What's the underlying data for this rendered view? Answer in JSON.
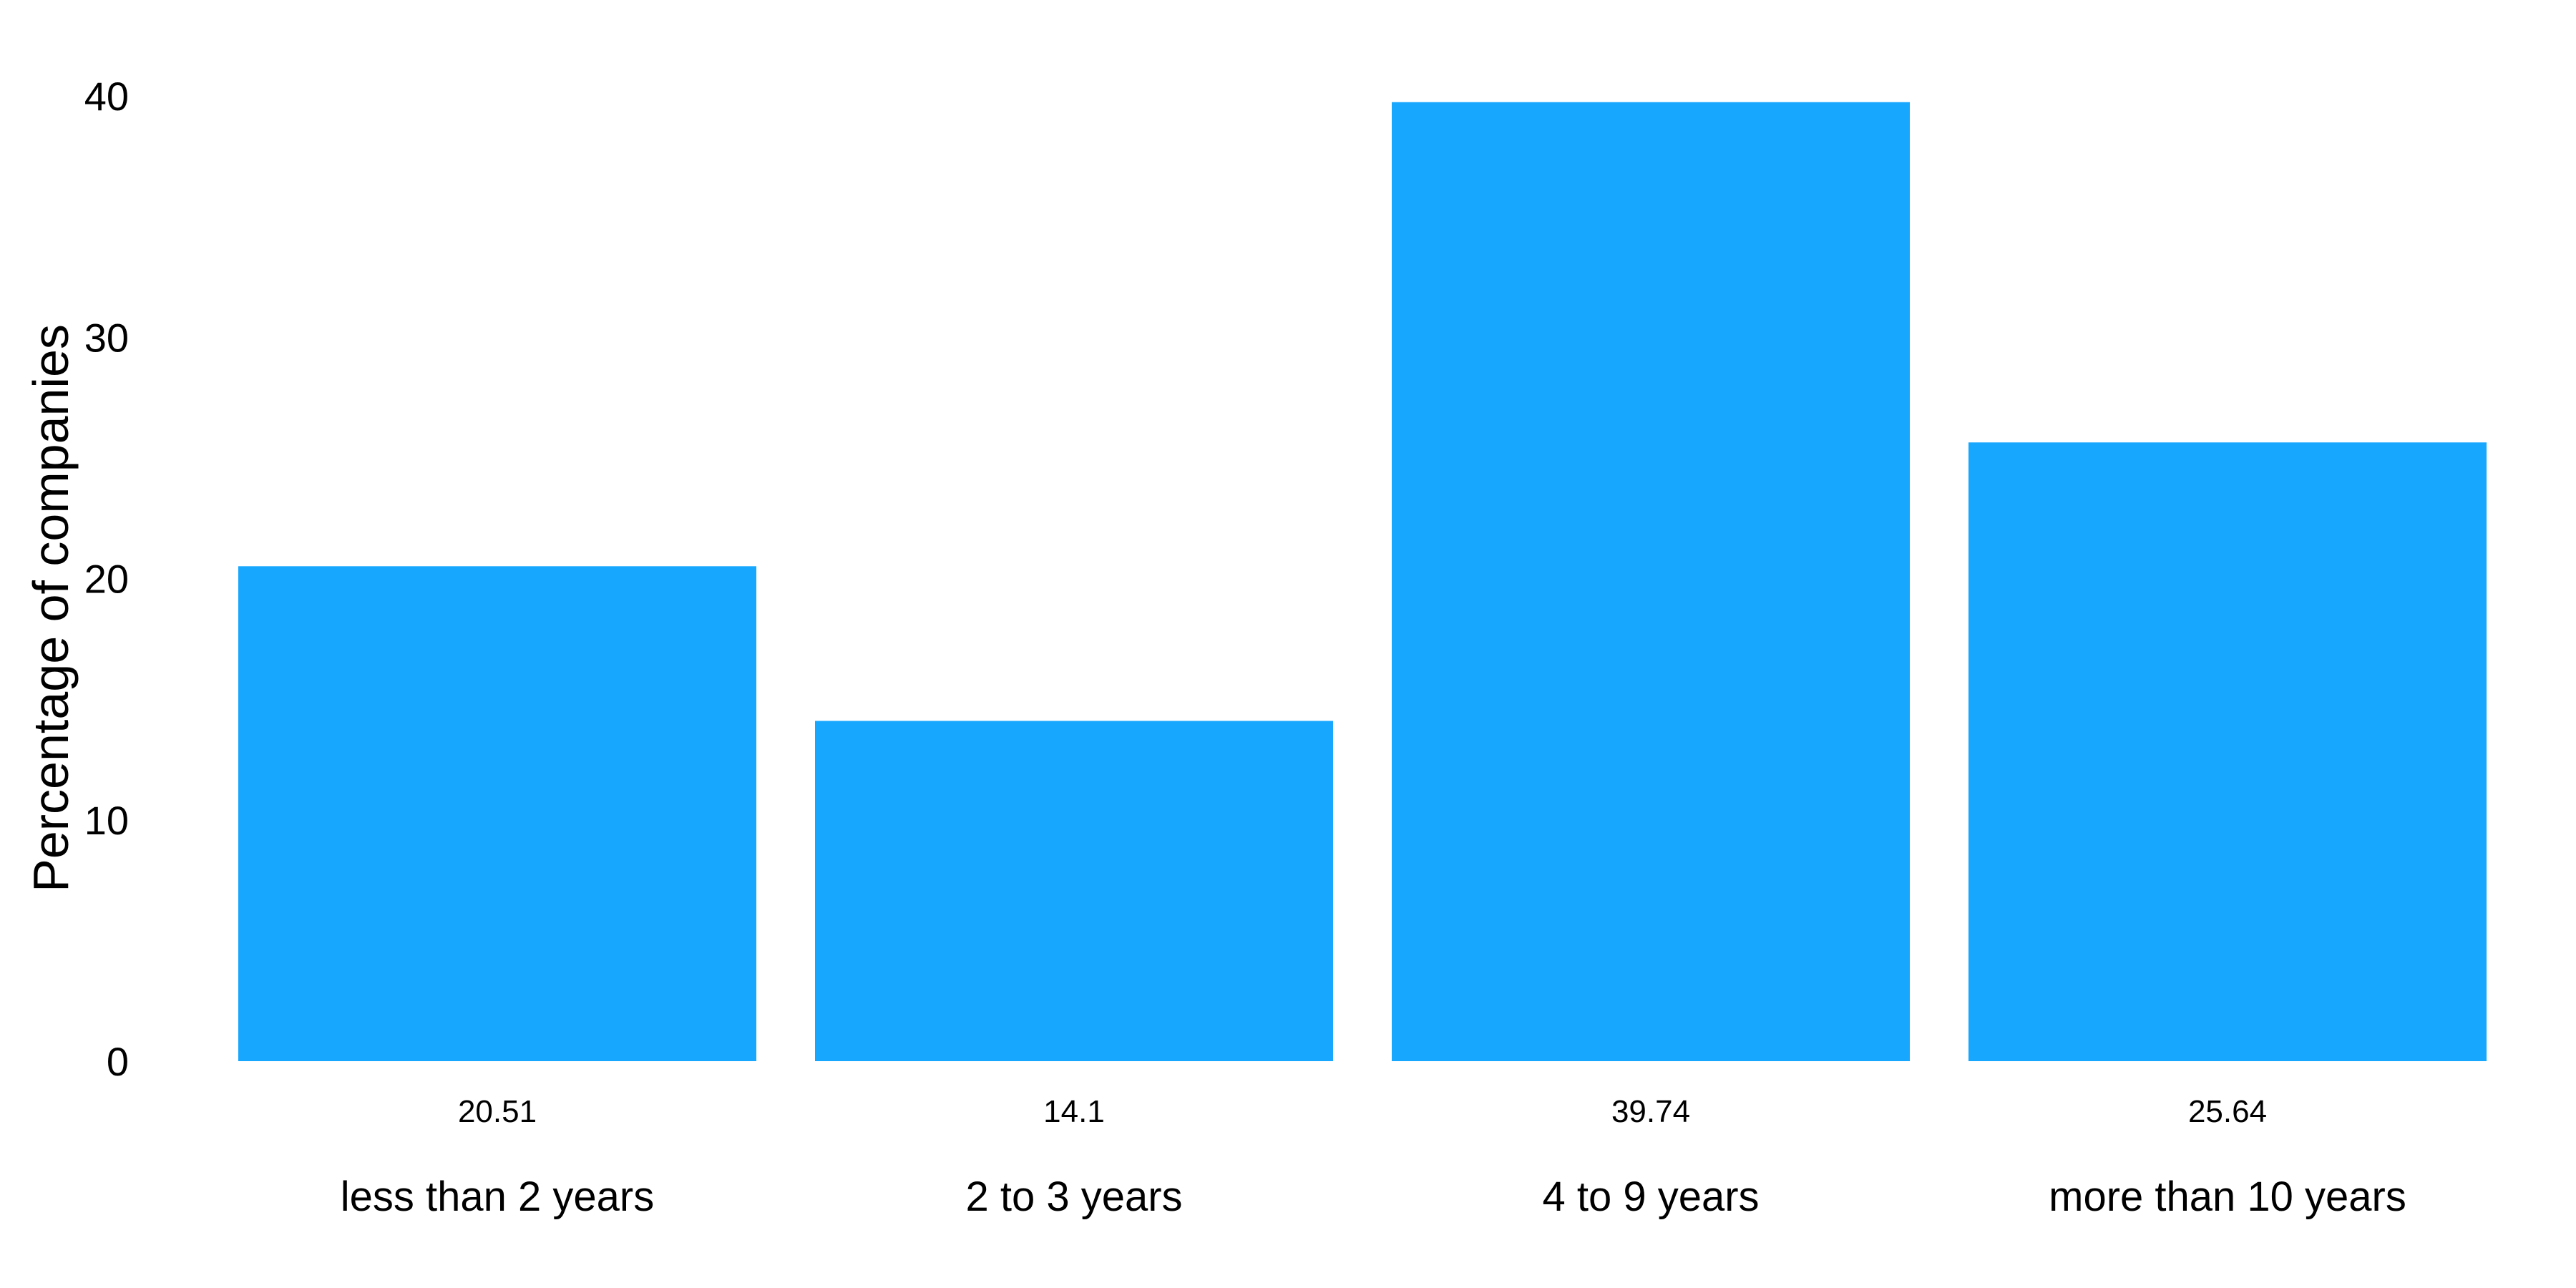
{
  "chart_data": {
    "type": "bar",
    "categories": [
      "less than 2 years",
      "2 to 3 years",
      "4 to 9 years",
      "more than 10 years"
    ],
    "values": [
      20.51,
      14.1,
      39.74,
      25.64
    ],
    "value_labels": [
      "20.51",
      "14.1",
      "39.74",
      "25.64"
    ],
    "title": "",
    "xlabel": "",
    "ylabel": "Percentage of companies",
    "ylim": [
      0,
      40
    ],
    "yticks": [
      0,
      10,
      20,
      30,
      40
    ],
    "ytick_labels": [
      "0",
      "10",
      "20",
      "30",
      "40"
    ],
    "grid": false,
    "legend": "none",
    "bar_color": "#18A7FF"
  }
}
